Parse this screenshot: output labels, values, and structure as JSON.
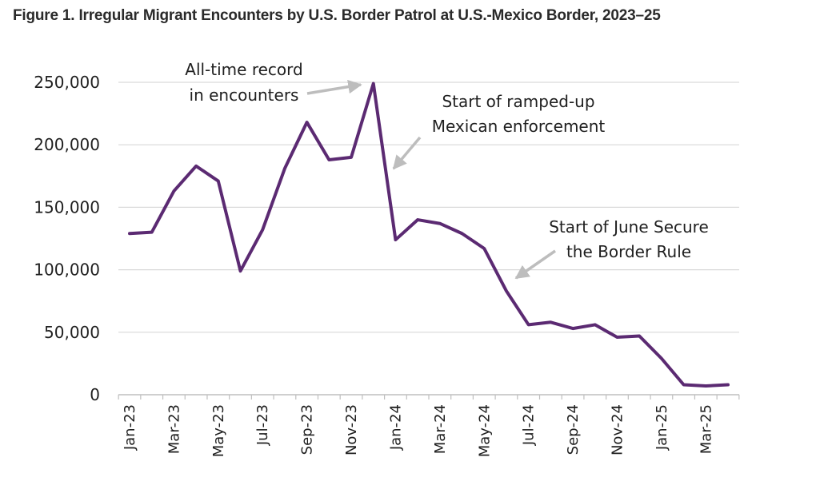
{
  "figure": {
    "title": "Figure 1. Irregular Migrant Encounters by U.S. Border Patrol at U.S.-Mexico Border, 2023–25"
  },
  "chart_data": {
    "type": "line",
    "title": "Figure 1. Irregular Migrant Encounters by U.S. Border Patrol at U.S.-Mexico Border, 2023–25",
    "xlabel": "",
    "ylabel": "",
    "ylim": [
      0,
      250000
    ],
    "grid": true,
    "line_color": "#5b2a72",
    "yticks": [
      0,
      50000,
      100000,
      150000,
      200000,
      250000
    ],
    "ytick_labels": [
      "0",
      "50,000",
      "100,000",
      "150,000",
      "200,000",
      "250,000"
    ],
    "x": [
      "Jan-23",
      "Feb-23",
      "Mar-23",
      "Apr-23",
      "May-23",
      "Jun-23",
      "Jul-23",
      "Aug-23",
      "Sep-23",
      "Oct-23",
      "Nov-23",
      "Dec-23",
      "Jan-24",
      "Feb-24",
      "Mar-24",
      "Apr-24",
      "May-24",
      "Jun-24",
      "Jul-24",
      "Aug-24",
      "Sep-24",
      "Oct-24",
      "Nov-24",
      "Dec-24",
      "Jan-25",
      "Feb-25",
      "Mar-25",
      "Apr-25"
    ],
    "xtick_labels": [
      "Jan-23",
      "Mar-23",
      "May-23",
      "Jul-23",
      "Sep-23",
      "Nov-23",
      "Jan-24",
      "Mar-24",
      "May-24",
      "Jul-24",
      "Sep-24",
      "Nov-24",
      "Jan-25",
      "Mar-25"
    ],
    "series": [
      {
        "name": "Encounters",
        "values": [
          129000,
          130000,
          163000,
          183000,
          171000,
          99000,
          132000,
          181000,
          218000,
          188000,
          190000,
          249000,
          124000,
          140000,
          137000,
          129000,
          117000,
          83000,
          56000,
          58000,
          53000,
          56000,
          46000,
          47000,
          29000,
          8000,
          7000,
          8000
        ]
      }
    ],
    "annotations": [
      {
        "lines": [
          "All-time record",
          "in encounters"
        ],
        "target": "Dec-23"
      },
      {
        "lines": [
          "Start of ramped-up",
          "Mexican enforcement"
        ],
        "target": "Jan-24"
      },
      {
        "lines": [
          "Start of June Secure",
          "the Border Rule"
        ],
        "target": "Jun-24"
      }
    ]
  }
}
